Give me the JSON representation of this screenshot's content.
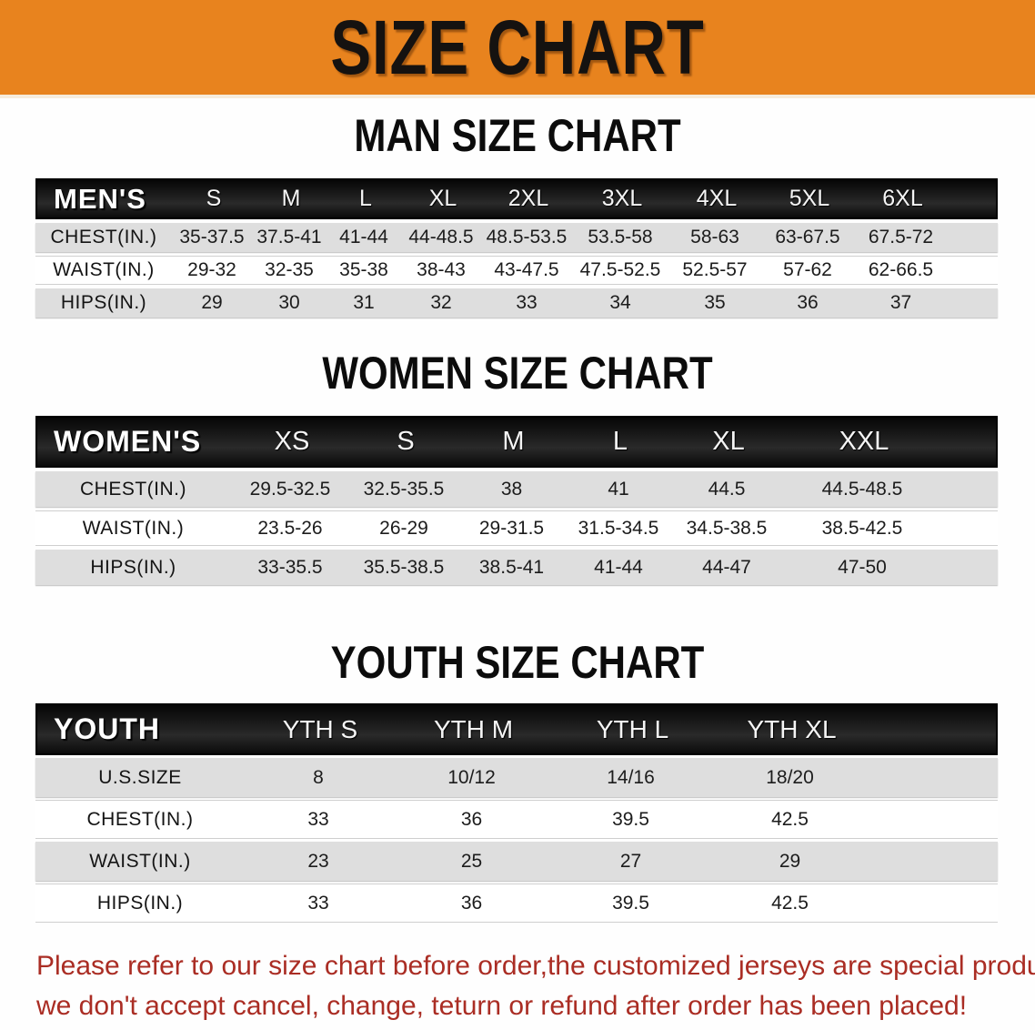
{
  "banner": {
    "title": "SIZE CHART",
    "bg_color": "#e8831e",
    "text_color": "#151210"
  },
  "men": {
    "heading": "MAN SIZE CHART",
    "header": {
      "label": "MEN'S",
      "sizes": [
        "S",
        "M",
        "L",
        "XL",
        "2XL",
        "3XL",
        "4XL",
        "5XL",
        "6XL"
      ]
    },
    "rows": [
      {
        "label": "CHEST(IN.)",
        "values": [
          "35-37.5",
          "37.5-41",
          "41-44",
          "44-48.5",
          "48.5-53.5",
          "53.5-58",
          "58-63",
          "63-67.5",
          "67.5-72"
        ]
      },
      {
        "label": "WAIST(IN.)",
        "values": [
          "29-32",
          "32-35",
          "35-38",
          "38-43",
          "43-47.5",
          "47.5-52.5",
          "52.5-57",
          "57-62",
          "62-66.5"
        ]
      },
      {
        "label": "HIPS(IN.)",
        "values": [
          "29",
          "30",
          "31",
          "32",
          "33",
          "34",
          "35",
          "36",
          "37"
        ]
      }
    ]
  },
  "women": {
    "heading": "WOMEN SIZE CHART",
    "header": {
      "label": "WOMEN'S",
      "sizes": [
        "XS",
        "S",
        "M",
        "L",
        "XL",
        "XXL"
      ]
    },
    "rows": [
      {
        "label": "CHEST(IN.)",
        "values": [
          "29.5-32.5",
          "32.5-35.5",
          "38",
          "41",
          "44.5",
          "44.5-48.5"
        ]
      },
      {
        "label": "WAIST(IN.)",
        "values": [
          "23.5-26",
          "26-29",
          "29-31.5",
          "31.5-34.5",
          "34.5-38.5",
          "38.5-42.5"
        ]
      },
      {
        "label": "HIPS(IN.)",
        "values": [
          "33-35.5",
          "35.5-38.5",
          "38.5-41",
          "41-44",
          "44-47",
          "47-50"
        ]
      }
    ]
  },
  "youth": {
    "heading": "YOUTH SIZE CHART",
    "header": {
      "label": "YOUTH",
      "sizes": [
        "YTH S",
        "YTH M",
        "YTH L",
        "YTH XL"
      ]
    },
    "rows": [
      {
        "label": "U.S.SIZE",
        "values": [
          "8",
          "10/12",
          "14/16",
          "18/20"
        ]
      },
      {
        "label": "CHEST(IN.)",
        "values": [
          "33",
          "36",
          "39.5",
          "42.5"
        ]
      },
      {
        "label": "WAIST(IN.)",
        "values": [
          "23",
          "25",
          "27",
          "29"
        ]
      },
      {
        "label": "HIPS(IN.)",
        "values": [
          "33",
          "36",
          "39.5",
          "42.5"
        ]
      }
    ]
  },
  "disclaimer": {
    "line1": "Please refer to our size chart before order,the customized jerseys are special products,",
    "line2": "we don't accept cancel, change, teturn or refund after order has been placed!",
    "text_color": "#aa2d24"
  }
}
